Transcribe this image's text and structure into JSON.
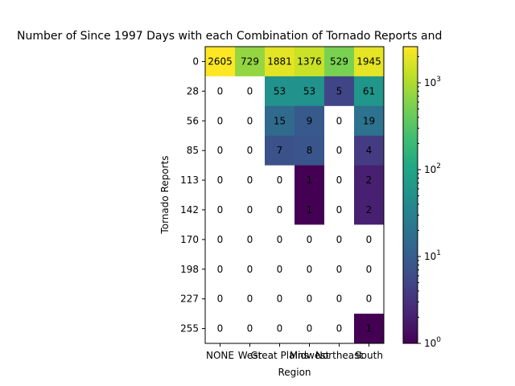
{
  "chart_data": {
    "type": "heatmap",
    "title": "Number of Since 1997 Days with each Combination of Tornado Reports and",
    "xlabel": "Region",
    "ylabel": "Tornado Reports",
    "x_categories": [
      "NONE",
      "West",
      "Great Plains",
      "Midwest",
      "Northeast",
      "South"
    ],
    "y_categories": [
      "0",
      "28",
      "56",
      "85",
      "113",
      "142",
      "170",
      "198",
      "227",
      "255"
    ],
    "values": [
      [
        2605,
        729,
        1881,
        1376,
        529,
        1945
      ],
      [
        0,
        0,
        53,
        53,
        5,
        61
      ],
      [
        0,
        0,
        15,
        9,
        0,
        19
      ],
      [
        0,
        0,
        7,
        8,
        0,
        4
      ],
      [
        0,
        0,
        0,
        1,
        0,
        2
      ],
      [
        0,
        0,
        0,
        1,
        0,
        2
      ],
      [
        0,
        0,
        0,
        0,
        0,
        0
      ],
      [
        0,
        0,
        0,
        0,
        0,
        0
      ],
      [
        0,
        0,
        0,
        0,
        0,
        0
      ],
      [
        0,
        0,
        0,
        0,
        0,
        1
      ]
    ],
    "colormap": "viridis",
    "color_scale": "log",
    "colorbar_range": [
      1,
      2605
    ],
    "colorbar_ticks": [
      {
        "value": 1,
        "base": "10",
        "exp": "0"
      },
      {
        "value": 10,
        "base": "10",
        "exp": "1"
      },
      {
        "value": 100,
        "base": "10",
        "exp": "2"
      },
      {
        "value": 1000,
        "base": "10",
        "exp": "3"
      }
    ],
    "zero_color": "#ffffff",
    "grid": false
  }
}
